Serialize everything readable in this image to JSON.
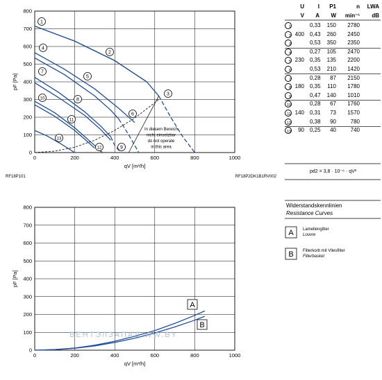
{
  "chart_data": [
    {
      "type": "line",
      "ylabel": "pF [Pa]",
      "xlabel": "qV [m³/h]",
      "xlim": [
        0,
        1000
      ],
      "ylim": [
        0,
        800
      ],
      "xticks": [
        "0",
        "200",
        "400",
        "600",
        "800",
        "1000"
      ],
      "yticks": [
        "0",
        "100",
        "200",
        "300",
        "400",
        "500",
        "600",
        "700",
        "800"
      ],
      "grid": true,
      "left_footer": "RF18P101",
      "right_footer": "RF18P2DK1B1RV002",
      "annotation": [
        "In diesem Bereich",
        "nicht einsetzbar",
        "do not operate",
        "in this area"
      ],
      "series": [
        {
          "name": "1",
          "x": [
            0,
            200,
            400,
            560
          ],
          "y": [
            715,
            630,
            520,
            400
          ]
        },
        {
          "name": "2",
          "x": [
            0,
            200,
            400,
            560,
            620
          ],
          "y": [
            715,
            630,
            520,
            400,
            320
          ]
        },
        {
          "name": "3",
          "x": [
            620,
            680,
            740,
            800
          ],
          "y": [
            320,
            200,
            90,
            0
          ]
        },
        {
          "name": "4",
          "x": [
            0,
            150,
            300,
            420,
            500
          ],
          "y": [
            565,
            470,
            360,
            250,
            170
          ]
        },
        {
          "name": "5",
          "x": [
            0,
            150,
            300,
            380,
            420
          ],
          "y": [
            535,
            440,
            320,
            240,
            190
          ]
        },
        {
          "name": "6",
          "x": [
            420,
            470,
            520
          ],
          "y": [
            190,
            100,
            0
          ]
        },
        {
          "name": "7",
          "x": [
            0,
            120,
            250,
            330,
            380
          ],
          "y": [
            425,
            340,
            230,
            150,
            90
          ]
        },
        {
          "name": "8",
          "x": [
            0,
            120,
            250,
            330,
            380
          ],
          "y": [
            395,
            310,
            210,
            130,
            70
          ]
        },
        {
          "name": "9",
          "x": [
            380,
            400,
            430
          ],
          "y": [
            90,
            40,
            0
          ]
        },
        {
          "name": "10",
          "x": [
            0,
            100,
            200,
            260,
            300
          ],
          "y": [
            290,
            225,
            140,
            80,
            40
          ]
        },
        {
          "name": "11",
          "x": [
            0,
            100,
            200,
            260,
            300
          ],
          "y": [
            270,
            205,
            125,
            65,
            25
          ]
        },
        {
          "name": "12",
          "x": [
            300,
            320,
            340
          ],
          "y": [
            40,
            15,
            0
          ]
        },
        {
          "name": "13",
          "x": [
            0,
            60,
            130,
            200
          ],
          "y": [
            125,
            95,
            50,
            0
          ]
        },
        {
          "name": "system",
          "x": [
            0,
            100,
            200,
            300,
            400,
            500,
            620
          ],
          "y": [
            0,
            8,
            30,
            70,
            125,
            195,
            300
          ]
        }
      ],
      "curve_labels": [
        "1",
        "2",
        "3",
        "4",
        "5",
        "6",
        "7",
        "8",
        "9",
        "10",
        "11",
        "12",
        "13"
      ]
    },
    {
      "type": "line",
      "ylabel": "pF [Pa]",
      "xlabel": "qV [m³/h]",
      "xlim": [
        0,
        1000
      ],
      "ylim": [
        0,
        800
      ],
      "xticks": [
        "0",
        "200",
        "400",
        "600",
        "800",
        "1000"
      ],
      "yticks": [
        "0",
        "100",
        "200",
        "300",
        "400",
        "500",
        "600",
        "700",
        "800"
      ],
      "grid": true,
      "series": [
        {
          "name": "A",
          "x": [
            0,
            100,
            200,
            300,
            400,
            500,
            600,
            700,
            800,
            850
          ],
          "y": [
            0,
            3,
            12,
            28,
            50,
            78,
            110,
            150,
            195,
            220
          ]
        },
        {
          "name": "B",
          "x": [
            0,
            100,
            200,
            300,
            400,
            500,
            600,
            700,
            800,
            850
          ],
          "y": [
            0,
            3,
            11,
            24,
            43,
            67,
            96,
            130,
            168,
            190
          ]
        }
      ]
    }
  ],
  "table": {
    "headers": [
      "U",
      "I",
      "P1",
      "n",
      "LWA"
    ],
    "units": [
      "V",
      "A",
      "W",
      "min⁻¹",
      "dB"
    ],
    "rows": [
      {
        "mark": "1",
        "U": "",
        "I": "0,33",
        "P": "150",
        "n": "2780"
      },
      {
        "mark": "2",
        "U": "400",
        "I": "0,43",
        "P": "260",
        "n": "2450"
      },
      {
        "mark": "3",
        "U": "",
        "I": "0,53",
        "P": "350",
        "n": "2350"
      },
      {
        "mark": "4",
        "U": "",
        "I": "0,27",
        "P": "105",
        "n": "2470"
      },
      {
        "mark": "5",
        "U": "230",
        "I": "0,35",
        "P": "135",
        "n": "2200"
      },
      {
        "mark": "6",
        "U": "",
        "I": "0,53",
        "P": "210",
        "n": "1420"
      },
      {
        "mark": "7",
        "U": "",
        "I": "0,28",
        "P": "87",
        "n": "2150"
      },
      {
        "mark": "8",
        "U": "180",
        "I": "0,35",
        "P": "110",
        "n": "1780"
      },
      {
        "mark": "9",
        "U": "",
        "I": "0,47",
        "P": "140",
        "n": "1010"
      },
      {
        "mark": "10",
        "U": "",
        "I": "0,28",
        "P": "67",
        "n": "1760"
      },
      {
        "mark": "11",
        "U": "140",
        "I": "0,31",
        "P": "73",
        "n": "1570"
      },
      {
        "mark": "12",
        "U": "",
        "I": "0,38",
        "P": "90",
        "n": "780"
      },
      {
        "mark": "13",
        "U": "90",
        "I": "0,25",
        "P": "40",
        "n": "740"
      }
    ],
    "formula": "pd2 = 3,8 · 10⁻⁶ · qV²"
  },
  "legend": {
    "title": "Widerstandskennlinien",
    "title_en": "Resistance Curves",
    "items": [
      {
        "key": "A",
        "de": "Lamellengitter",
        "en": "Louvre"
      },
      {
        "key": "B",
        "de": "Filterkorb mit Vliesfilter",
        "en": "Filterbasket"
      }
    ]
  },
  "watermark": "ВЕНТЭЛЗАПАД   WW.BY",
  "colors": {
    "curve": "#1f4e96",
    "grid": "#000000",
    "system": "#000000"
  }
}
